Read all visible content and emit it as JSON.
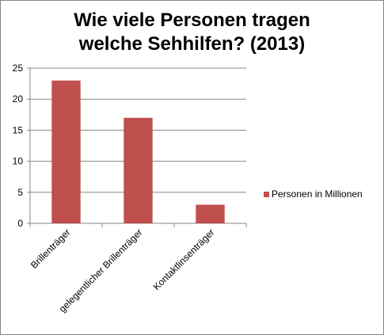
{
  "chart_data": {
    "type": "bar",
    "title_lines": [
      "Wie viele Personen tragen",
      "welche Sehhilfen? (2013)"
    ],
    "categories": [
      "Brillenträger",
      "gelegentlicher Brillenträger",
      "Kontaktlinsenträger"
    ],
    "series": [
      {
        "name": "Personen in Millionen",
        "values": [
          23,
          17,
          3
        ],
        "color": "#c0504d"
      }
    ],
    "ylim": [
      0,
      25
    ],
    "yticks": [
      "0",
      "5",
      "10",
      "15",
      "20",
      "25"
    ],
    "grid": true,
    "legend_position": "right"
  }
}
